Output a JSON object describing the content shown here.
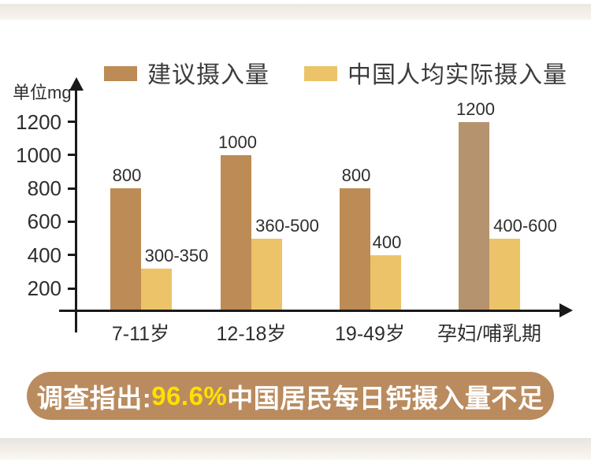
{
  "page": {
    "background": "#ffffff",
    "top_band": {
      "color_top": "#ebe7e1",
      "color_bottom": "#f8f5f0"
    },
    "bottom_band": {
      "color_top": "#e8e4de",
      "color_bottom": "#fbf8f3"
    }
  },
  "chart_data": {
    "type": "bar",
    "title": "",
    "unit_label": "单位mg",
    "categories": [
      "7-11岁",
      "12-18岁",
      "19-49岁",
      "孕妇/哺乳期"
    ],
    "series": [
      {
        "name": "建议摄入量",
        "color": "#bd8b55",
        "bar_colors": [
          "#bd8b55",
          "#bd8b55",
          "#bd8b55",
          "#b6936f"
        ],
        "values": [
          800,
          1000,
          800,
          1200
        ],
        "value_labels": [
          "800",
          "1000",
          "800",
          "1200"
        ]
      },
      {
        "name": "中国人均实际摄入量",
        "color": "#ecc368",
        "bar_colors": [
          "#ecc368",
          "#ecc368",
          "#ecc368",
          "#ecc368"
        ],
        "values": [
          320,
          500,
          400,
          500
        ],
        "value_labels": [
          "300-350",
          "360-500",
          "400",
          "400-600"
        ]
      }
    ],
    "yticks": [
      1200,
      1000,
      800,
      600,
      400,
      200
    ],
    "ylim": [
      0,
      1300
    ],
    "grid": false,
    "legend_position": "top",
    "axis_color": "#1a1a1a"
  },
  "banner": {
    "prefix": "调查指出: ",
    "highlight": "96.6%",
    "suffix": "中国居民每日钙摄入量不足",
    "background": "#ba8b5e",
    "text_color": "#ffffff",
    "highlight_color": "#ffe100"
  }
}
